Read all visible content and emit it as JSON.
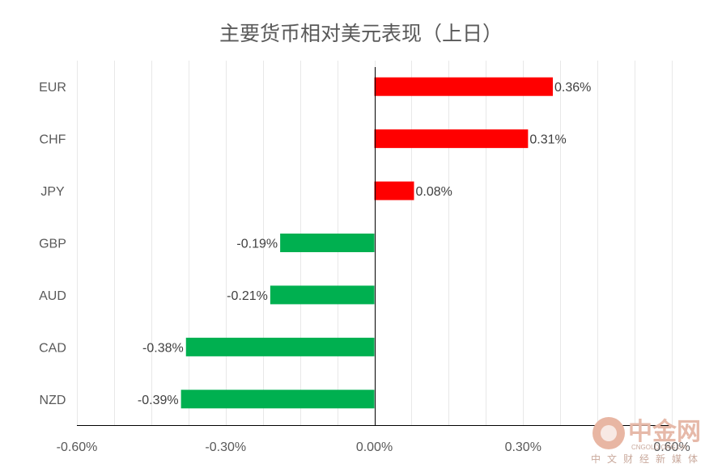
{
  "chart_data": {
    "type": "bar",
    "orientation": "horizontal",
    "title": "主要货币相对美元表现（上日）",
    "categories": [
      "EUR",
      "CHF",
      "JPY",
      "GBP",
      "AUD",
      "CAD",
      "NZD"
    ],
    "values": [
      0.36,
      0.31,
      0.08,
      -0.19,
      -0.21,
      -0.38,
      -0.39
    ],
    "value_labels": [
      "0.36%",
      "0.31%",
      "0.08%",
      "-0.19%",
      "-0.21%",
      "-0.38%",
      "-0.39%"
    ],
    "xlim": [
      -0.6,
      0.6
    ],
    "x_ticks": [
      -0.6,
      -0.3,
      0.0,
      0.3,
      0.6
    ],
    "x_tick_labels": [
      "-0.60%",
      "-0.30%",
      "0.00%",
      "0.30%",
      "0.60%"
    ],
    "grid": true,
    "positive_color": "#ff0000",
    "negative_color": "#00b050"
  },
  "watermark": {
    "brand": "中金网",
    "domain": "CNGOLD.ORG.CN",
    "slogan": "中文财经新媒体"
  }
}
